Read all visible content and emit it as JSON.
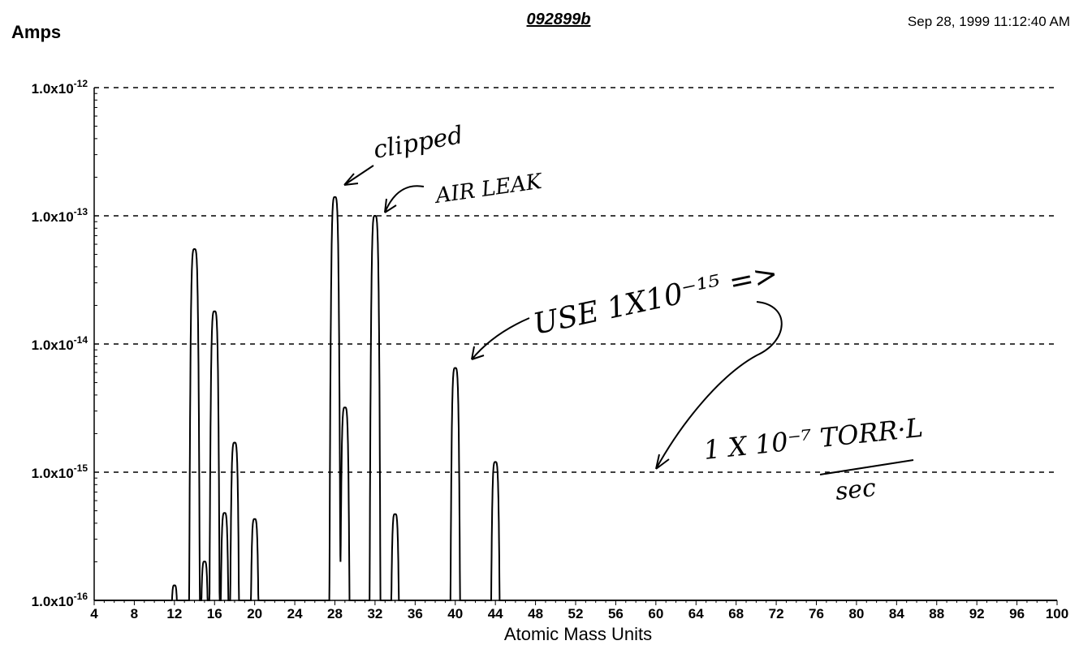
{
  "header": {
    "ylabel": "Amps",
    "title": "092899b",
    "timestamp": "Sep 28, 1999  11:12:40 AM"
  },
  "chart_data": {
    "type": "line",
    "title": "092899b",
    "xlabel": "Atomic Mass Units",
    "ylabel": "Amps",
    "ylog": true,
    "xlim": [
      4,
      100
    ],
    "ylim": [
      1e-16,
      1e-12
    ],
    "grid": "horizontal-dashed",
    "xticks": [
      4,
      8,
      12,
      16,
      20,
      24,
      28,
      32,
      36,
      40,
      44,
      48,
      52,
      56,
      60,
      64,
      68,
      72,
      76,
      80,
      84,
      88,
      92,
      96,
      100
    ],
    "ytick_labels": [
      {
        "value": 1e-16,
        "mant": "1.0x10",
        "exp": "-16"
      },
      {
        "value": 1e-15,
        "mant": "1.0x10",
        "exp": "-15"
      },
      {
        "value": 1e-14,
        "mant": "1.0x10",
        "exp": "-14"
      },
      {
        "value": 1e-13,
        "mant": "1.0x10",
        "exp": "-13"
      },
      {
        "value": 1e-12,
        "mant": "1.0x10",
        "exp": "-12"
      }
    ],
    "series": [
      {
        "peaks": [
          {
            "x": 12,
            "y": 1.3e-16
          },
          {
            "x": 14,
            "y": 5.5e-14
          },
          {
            "x": 15,
            "y": 2e-16
          },
          {
            "x": 16,
            "y": 1.8e-14
          },
          {
            "x": 17,
            "y": 4.8e-16
          },
          {
            "x": 18,
            "y": 1.7e-15
          },
          {
            "x": 20,
            "y": 4.3e-16
          },
          {
            "x": 28,
            "y": 1.4e-13
          },
          {
            "x": 29,
            "y": 3.2e-15
          },
          {
            "x": 32,
            "y": 1e-13
          },
          {
            "x": 34,
            "y": 4.7e-16
          },
          {
            "x": 40,
            "y": 6.5e-15
          },
          {
            "x": 44,
            "y": 1.2e-15
          }
        ]
      }
    ],
    "annotations": [
      {
        "text": "clipped",
        "x": 28,
        "y": 2.2e-13
      },
      {
        "text": "AIR LEAK",
        "x": 32,
        "y": 1.5e-13
      },
      {
        "text": "USE 1X10⁻¹⁵ =>",
        "x": 40,
        "y": 1.6e-14
      },
      {
        "text": "1 X 10⁻⁷ TORR·L",
        "x": 60,
        "y": 1.3e-15
      },
      {
        "text": "sec",
        "x": 64,
        "y": 8e-16
      }
    ]
  }
}
